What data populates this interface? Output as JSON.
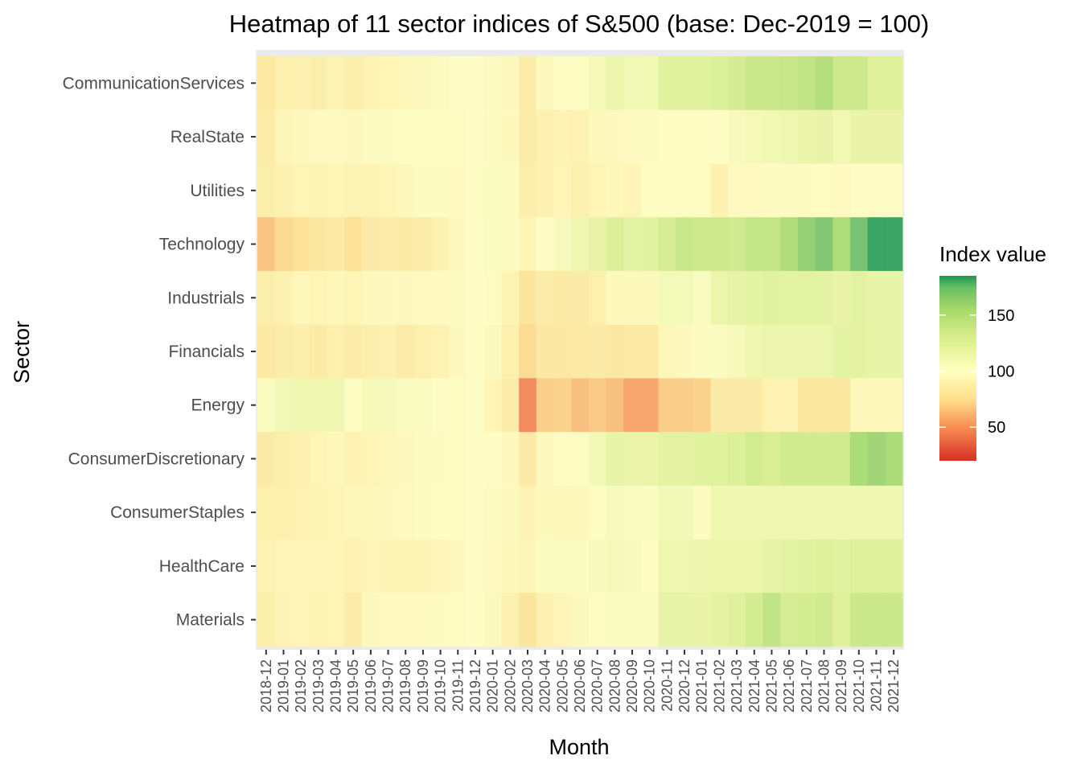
{
  "chart_data": {
    "type": "heatmap",
    "title": "Heatmap of 11 sector indices of S&500 (base: Dec-2019 = 100)",
    "xlabel": "Month",
    "ylabel": "Sector",
    "x": [
      "2018-12",
      "2019-01",
      "2019-02",
      "2019-03",
      "2019-04",
      "2019-05",
      "2019-06",
      "2019-07",
      "2019-08",
      "2019-09",
      "2019-10",
      "2019-11",
      "2019-12",
      "2020-01",
      "2020-02",
      "2020-03",
      "2020-04",
      "2020-05",
      "2020-06",
      "2020-07",
      "2020-08",
      "2020-09",
      "2020-10",
      "2020-11",
      "2020-12",
      "2021-01",
      "2021-02",
      "2021-03",
      "2021-04",
      "2021-05",
      "2021-06",
      "2021-07",
      "2021-08",
      "2021-09",
      "2021-10",
      "2021-11",
      "2021-12"
    ],
    "y": [
      "CommunicationServices",
      "RealState",
      "Utilities",
      "Technology",
      "Industrials",
      "Financials",
      "Energy",
      "ConsumerDiscretionary",
      "ConsumerStaples",
      "HealthCare",
      "Materials"
    ],
    "z": [
      [
        82,
        88,
        89,
        87,
        91,
        87,
        90,
        92,
        94,
        96,
        98,
        100,
        100,
        98,
        96,
        85,
        96,
        101,
        101,
        108,
        116,
        110,
        111,
        125,
        125,
        125,
        129,
        134,
        139,
        139,
        142,
        144,
        151,
        138,
        138,
        128,
        128
      ],
      [
        85,
        93,
        95,
        97,
        97,
        96,
        98,
        98,
        99,
        99,
        99,
        99,
        100,
        98,
        95,
        85,
        89,
        91,
        90,
        95,
        96,
        97,
        98,
        99,
        99,
        99,
        100,
        105,
        108,
        112,
        114,
        117,
        118,
        111,
        118,
        118,
        118
      ],
      [
        86,
        89,
        92,
        91,
        92,
        91,
        91,
        92,
        95,
        98,
        98,
        97,
        100,
        104,
        98,
        87,
        89,
        92,
        88,
        92,
        94,
        92,
        99,
        99,
        99,
        99,
        89,
        97,
        97,
        98,
        98,
        98,
        101,
        97,
        100,
        100,
        100
      ],
      [
        65,
        72,
        76,
        80,
        82,
        76,
        84,
        85,
        83,
        85,
        89,
        96,
        100,
        102,
        98,
        92,
        100,
        106,
        113,
        118,
        129,
        121,
        124,
        133,
        139,
        138,
        138,
        137,
        143,
        143,
        153,
        164,
        171,
        155,
        174,
        184,
        184
      ],
      [
        87,
        89,
        94,
        92,
        94,
        92,
        95,
        96,
        96,
        97,
        97,
        98,
        100,
        99,
        91,
        79,
        85,
        83,
        84,
        88,
        95,
        95,
        95,
        109,
        109,
        103,
        116,
        120,
        121,
        125,
        122,
        122,
        122,
        118,
        122,
        119,
        119
      ],
      [
        82,
        85,
        86,
        83,
        88,
        85,
        87,
        89,
        85,
        88,
        90,
        96,
        100,
        96,
        88,
        73,
        81,
        81,
        82,
        84,
        81,
        82,
        82,
        94,
        96,
        98,
        103,
        107,
        113,
        116,
        115,
        115,
        115,
        121,
        123,
        119,
        119
      ],
      [
        103,
        110,
        113,
        113,
        113,
        101,
        108,
        107,
        103,
        103,
        100,
        99,
        100,
        92,
        85,
        45,
        69,
        70,
        64,
        67,
        64,
        55,
        55,
        68,
        68,
        70,
        84,
        84,
        84,
        90,
        91,
        80,
        80,
        80,
        94,
        94,
        94
      ],
      [
        84,
        87,
        89,
        92,
        94,
        90,
        92,
        94,
        96,
        98,
        98,
        99,
        100,
        100,
        96,
        84,
        96,
        101,
        101,
        110,
        119,
        117,
        117,
        123,
        123,
        125,
        125,
        129,
        135,
        132,
        136,
        136,
        136,
        137,
        156,
        160,
        156
      ],
      [
        88,
        88,
        90,
        91,
        92,
        94,
        94,
        96,
        97,
        98,
        99,
        99,
        100,
        98,
        96,
        91,
        95,
        94,
        94,
        101,
        106,
        104,
        102,
        110,
        110,
        98,
        113,
        113,
        113,
        113,
        113,
        113,
        113,
        113,
        113,
        113,
        113
      ],
      [
        90,
        93,
        93,
        93,
        92,
        90,
        93,
        91,
        91,
        91,
        93,
        96,
        100,
        97,
        95,
        93,
        102,
        102,
        102,
        105,
        107,
        105,
        101,
        114,
        114,
        115,
        116,
        116,
        116,
        120,
        122,
        124,
        127,
        124,
        128,
        128,
        128
      ],
      [
        86,
        91,
        93,
        91,
        92,
        85,
        95,
        97,
        97,
        97,
        98,
        99,
        100,
        96,
        89,
        78,
        89,
        93,
        95,
        99,
        103,
        104,
        103,
        120,
        120,
        118,
        123,
        126,
        135,
        145,
        133,
        135,
        137,
        127,
        139,
        139,
        139
      ]
    ],
    "colorscale": {
      "name": "Index value",
      "range": [
        20,
        185
      ],
      "stops": [
        {
          "value": 20,
          "color": "#d73027"
        },
        {
          "value": 50,
          "color": "#f88d52"
        },
        {
          "value": 75,
          "color": "#fee08b"
        },
        {
          "value": 100,
          "color": "#ffffbf"
        },
        {
          "value": 130,
          "color": "#d9ef8b"
        },
        {
          "value": 155,
          "color": "#a6d96a"
        },
        {
          "value": 175,
          "color": "#66bd63"
        },
        {
          "value": 185,
          "color": "#1a9850"
        }
      ],
      "ticks": [
        50,
        100,
        150
      ]
    },
    "tile_alpha": 0.88,
    "panel_background": "#ebebeb",
    "grid": true,
    "legend_position": "right"
  }
}
